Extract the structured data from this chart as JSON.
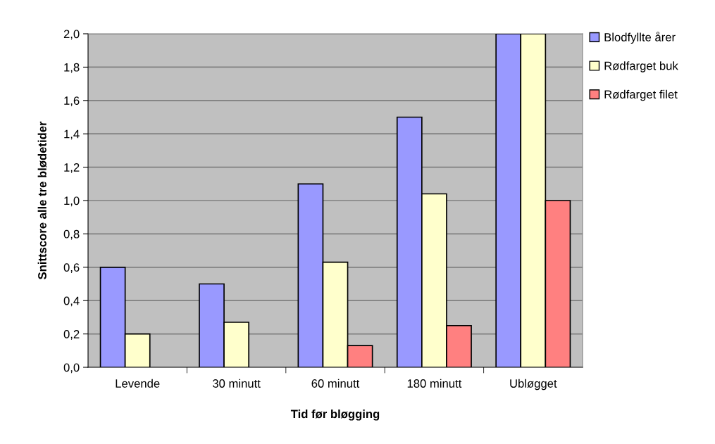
{
  "chart_data": {
    "type": "bar",
    "xlabel": "Tid før bløgging",
    "ylabel": "Snittscore alle tre blødetider",
    "categories": [
      "Levende",
      "30 minutt",
      "60 minutt",
      "180 minutt",
      "Ubløgget"
    ],
    "series": [
      {
        "name": "Blodfyllte årer",
        "color": "#9999ff",
        "values": [
          0.6,
          0.5,
          1.1,
          1.5,
          2.0
        ]
      },
      {
        "name": "Rødfarget buk",
        "color": "#ffffcc",
        "values": [
          0.2,
          0.27,
          0.63,
          1.04,
          2.0
        ]
      },
      {
        "name": "Rødfarget filet",
        "color": "#ff8080",
        "values": [
          null,
          null,
          0.13,
          0.25,
          1.0
        ]
      }
    ],
    "ylim": [
      0,
      2.0
    ],
    "yticks": [
      {
        "value": 0,
        "label": "0,0"
      },
      {
        "value": 0.2,
        "label": "0,2"
      },
      {
        "value": 0.4,
        "label": "0,4"
      },
      {
        "value": 0.6,
        "label": "0,6"
      },
      {
        "value": 0.8,
        "label": "0,8"
      },
      {
        "value": 1.0,
        "label": "1,0"
      },
      {
        "value": 1.2,
        "label": "1,2"
      },
      {
        "value": 1.4,
        "label": "1,4"
      },
      {
        "value": 1.6,
        "label": "1,6"
      },
      {
        "value": 1.8,
        "label": "1,8"
      },
      {
        "value": 2.0,
        "label": "2,0"
      }
    ],
    "grid": "y",
    "legend": "top right"
  }
}
